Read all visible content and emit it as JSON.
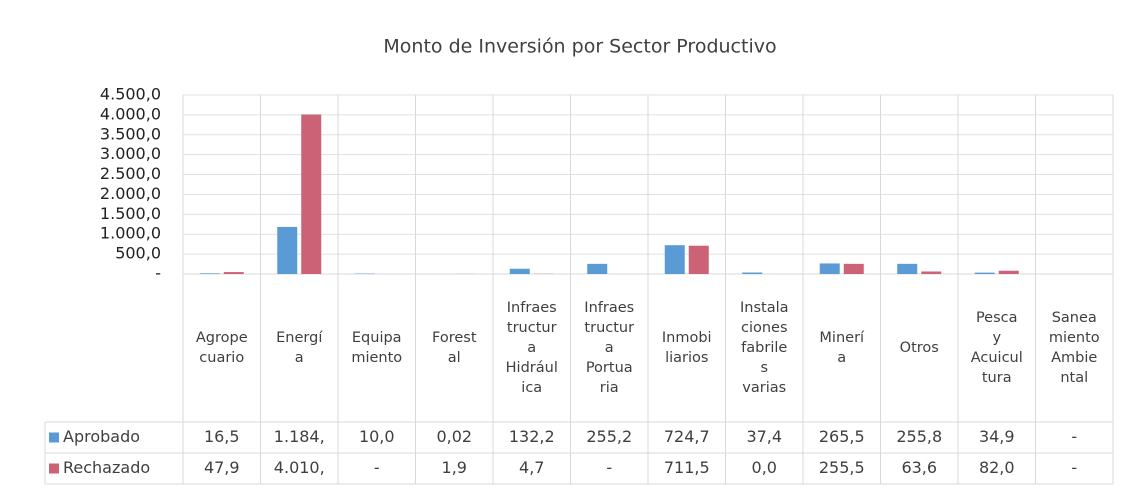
{
  "chart_data": {
    "type": "bar",
    "title": "Monto de Inversión por Sector Productivo",
    "categories": [
      "Agrope\ncuario",
      "Energí\na",
      "Equipa\nmiento",
      "Forest\nal",
      "Infraes\ntructur\na\nHidrául\nica",
      "Infraes\ntructur\na\nPortua\nria",
      "Inmobi\nliarios",
      "Instala\nciones\nfabrile\ns\nvarias",
      "Minerí\na",
      "Otros",
      "Pesca\ny\nAcuicul\ntura",
      "Sanea\nmiento\nAmbie\nntal"
    ],
    "series": [
      {
        "name": "Aprobado",
        "color": "#5b9bd5",
        "values": [
          16.5,
          1184,
          10.0,
          0.02,
          132.2,
          255.2,
          724.7,
          37.4,
          265.5,
          255.8,
          34.9,
          null
        ],
        "value_labels": [
          "16,5",
          "1.184,",
          "10,0",
          "0,02",
          "132,2",
          "255,2",
          "724,7",
          "37,4",
          "265,5",
          "255,8",
          "34,9",
          "-"
        ]
      },
      {
        "name": "Rechazado",
        "color": "#cc6275",
        "values": [
          47.9,
          4010,
          null,
          1.9,
          4.7,
          null,
          711.5,
          0.0,
          255.5,
          63.6,
          82.0,
          null
        ],
        "value_labels": [
          "47,9",
          "4.010,",
          "-",
          "1,9",
          "4,7",
          "-",
          "711,5",
          "0,0",
          "255,5",
          "63,6",
          "82,0",
          "-"
        ]
      }
    ],
    "ylim": [
      0,
      4500
    ],
    "yticks": [
      {
        "value": 0,
        "label": "-"
      },
      {
        "value": 500,
        "label": "500,0"
      },
      {
        "value": 1000,
        "label": "1.000,0"
      },
      {
        "value": 1500,
        "label": "1.500,0"
      },
      {
        "value": 2000,
        "label": "2.000,0"
      },
      {
        "value": 2500,
        "label": "2.500,0"
      },
      {
        "value": 3000,
        "label": "3.000,0"
      },
      {
        "value": 3500,
        "label": "3.500,0"
      },
      {
        "value": 4000,
        "label": "4.000,0"
      },
      {
        "value": 4500,
        "label": "4.500,0"
      }
    ],
    "grid": true
  }
}
